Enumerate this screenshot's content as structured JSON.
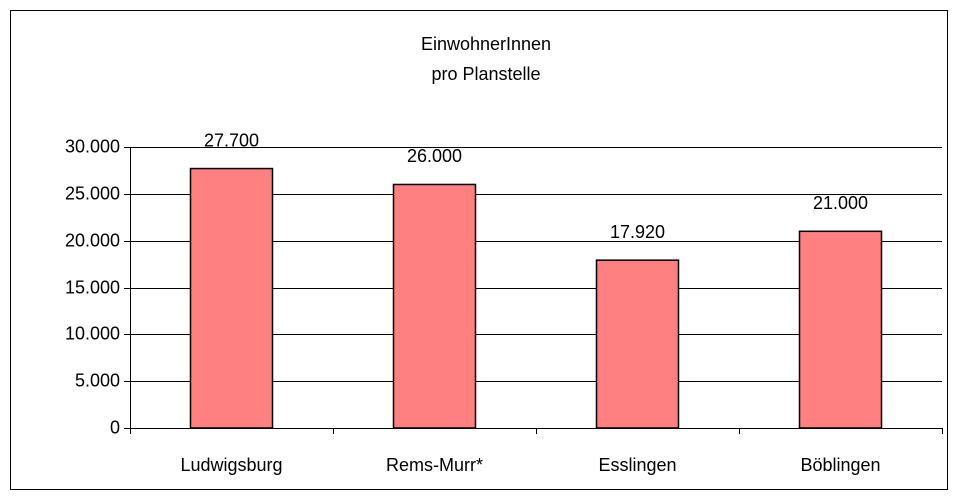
{
  "chart_data": {
    "type": "bar",
    "title": [
      "EinwohnerInnen",
      "pro Planstelle"
    ],
    "categories": [
      "Ludwigsburg",
      "Rems-Murr*",
      "Esslingen",
      "Böblingen"
    ],
    "values": [
      27700,
      26000,
      17920,
      21000
    ],
    "value_labels": [
      "27.700",
      "26.000",
      "17.920",
      "21.000"
    ],
    "color": "#ff8080",
    "ylim": [
      0,
      30000
    ],
    "yticks": [
      0,
      {
        "value": 5000,
        "label": "5.000"
      },
      {
        "value": 10000,
        "label": "10.000"
      },
      {
        "value": 15000,
        "label": "15.000"
      },
      {
        "value": 20000,
        "label": "20.000"
      },
      {
        "value": 25000,
        "label": "25.000"
      },
      {
        "value": 30000,
        "label": "30.000"
      }
    ],
    "grid": true
  }
}
